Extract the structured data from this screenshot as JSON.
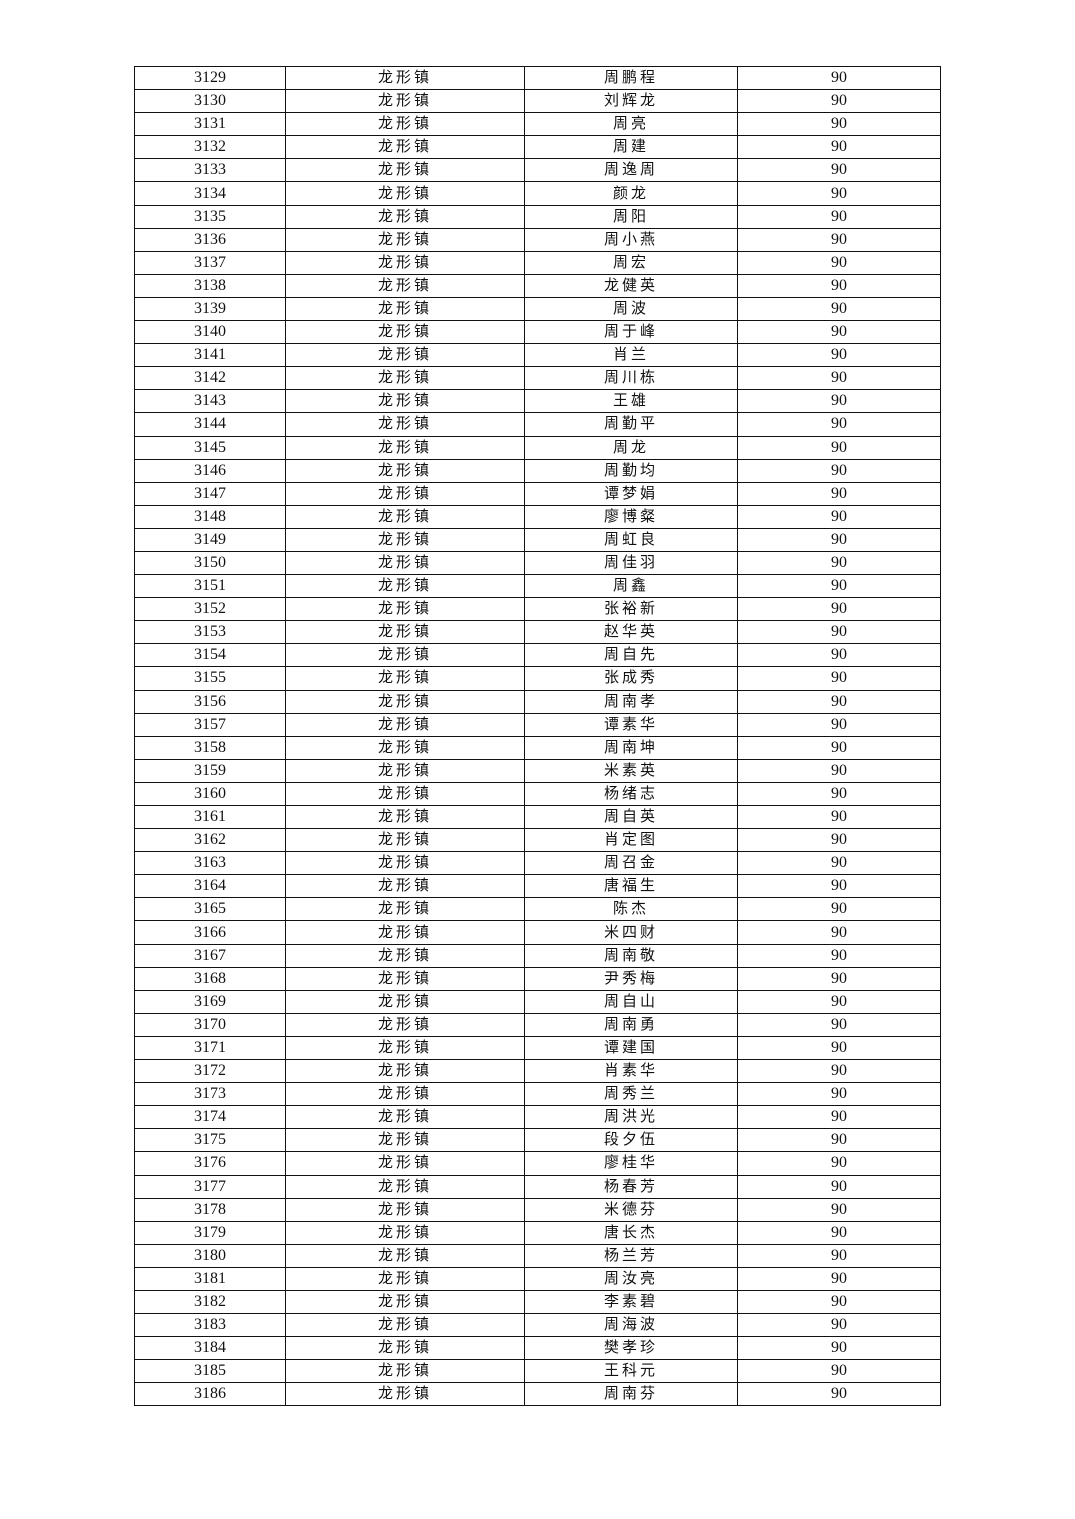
{
  "table": {
    "town": "龙形镇",
    "score": "90",
    "rows": [
      [
        "3129",
        "周鹏程"
      ],
      [
        "3130",
        "刘辉龙"
      ],
      [
        "3131",
        "周亮"
      ],
      [
        "3132",
        "周建"
      ],
      [
        "3133",
        "周逸周"
      ],
      [
        "3134",
        "颜龙"
      ],
      [
        "3135",
        "周阳"
      ],
      [
        "3136",
        "周小燕"
      ],
      [
        "3137",
        "周宏"
      ],
      [
        "3138",
        "龙健英"
      ],
      [
        "3139",
        "周波"
      ],
      [
        "3140",
        "周于峰"
      ],
      [
        "3141",
        "肖兰"
      ],
      [
        "3142",
        "周川栋"
      ],
      [
        "3143",
        "王雄"
      ],
      [
        "3144",
        "周勤平"
      ],
      [
        "3145",
        "周龙"
      ],
      [
        "3146",
        "周勤均"
      ],
      [
        "3147",
        "谭梦娟"
      ],
      [
        "3148",
        "廖博粲"
      ],
      [
        "3149",
        "周虹良"
      ],
      [
        "3150",
        "周佳羽"
      ],
      [
        "3151",
        "周鑫"
      ],
      [
        "3152",
        "张裕新"
      ],
      [
        "3153",
        "赵华英"
      ],
      [
        "3154",
        "周自先"
      ],
      [
        "3155",
        "张成秀"
      ],
      [
        "3156",
        "周南孝"
      ],
      [
        "3157",
        "谭素华"
      ],
      [
        "3158",
        "周南坤"
      ],
      [
        "3159",
        "米素英"
      ],
      [
        "3160",
        "杨绪志"
      ],
      [
        "3161",
        "周自英"
      ],
      [
        "3162",
        "肖定图"
      ],
      [
        "3163",
        "周召金"
      ],
      [
        "3164",
        "唐福生"
      ],
      [
        "3165",
        "陈杰"
      ],
      [
        "3166",
        "米四财"
      ],
      [
        "3167",
        "周南敬"
      ],
      [
        "3168",
        "尹秀梅"
      ],
      [
        "3169",
        "周自山"
      ],
      [
        "3170",
        "周南勇"
      ],
      [
        "3171",
        "谭建国"
      ],
      [
        "3172",
        "肖素华"
      ],
      [
        "3173",
        "周秀兰"
      ],
      [
        "3174",
        "周洪光"
      ],
      [
        "3175",
        "段夕伍"
      ],
      [
        "3176",
        "廖桂华"
      ],
      [
        "3177",
        "杨春芳"
      ],
      [
        "3178",
        "米德芬"
      ],
      [
        "3179",
        "唐长杰"
      ],
      [
        "3180",
        "杨兰芳"
      ],
      [
        "3181",
        "周汝亮"
      ],
      [
        "3182",
        "李素碧"
      ],
      [
        "3183",
        "周海波"
      ],
      [
        "3184",
        "樊孝珍"
      ],
      [
        "3185",
        "王科元"
      ],
      [
        "3186",
        "周南芬"
      ]
    ]
  }
}
